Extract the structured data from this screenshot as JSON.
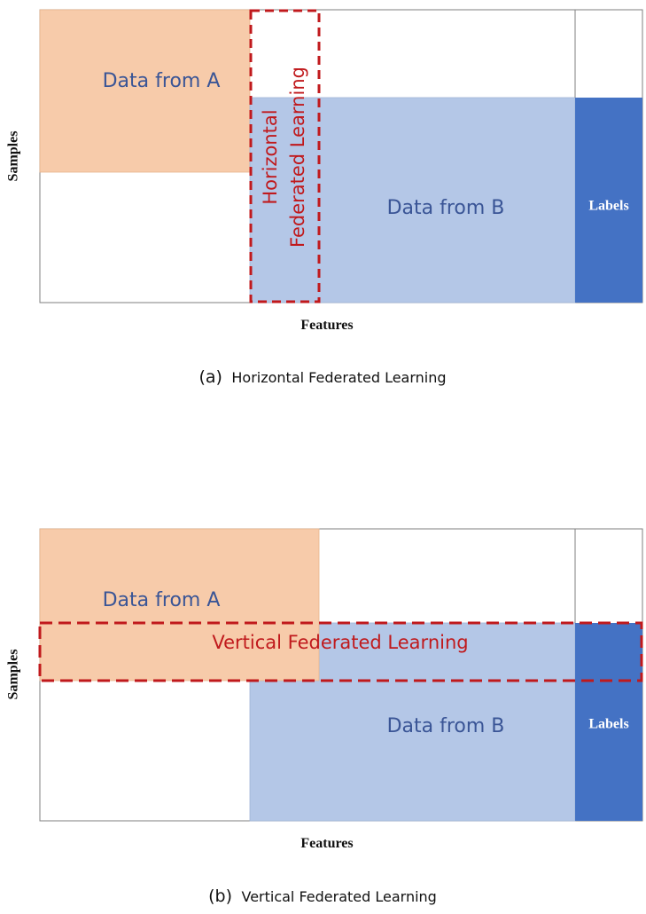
{
  "colors": {
    "party_a_fill": "#f7cbaa",
    "party_b_fill": "#b4c7e7",
    "labels_fill": "#4472c4",
    "dashed_box": "#c0191c",
    "frame": "#7f7f7f"
  },
  "panel_a": {
    "party_a_label": "Data from A",
    "party_b_label": "Data from B",
    "labels_label": "Labels",
    "fl_label_line1": "Horizontal",
    "fl_label_line2": "Federated Learning",
    "x_axis_label": "Features",
    "y_axis_label": "Samples",
    "caption_prefix": "(a)",
    "caption_text": "Horizontal Federated Learning"
  },
  "panel_b": {
    "party_a_label": "Data from A",
    "party_b_label": "Data from B",
    "labels_label": "Labels",
    "fl_label": "Vertical Federated Learning",
    "x_axis_label": "Features",
    "y_axis_label": "Samples",
    "caption_prefix": "(b)",
    "caption_text": "Vertical Federated Learning"
  }
}
